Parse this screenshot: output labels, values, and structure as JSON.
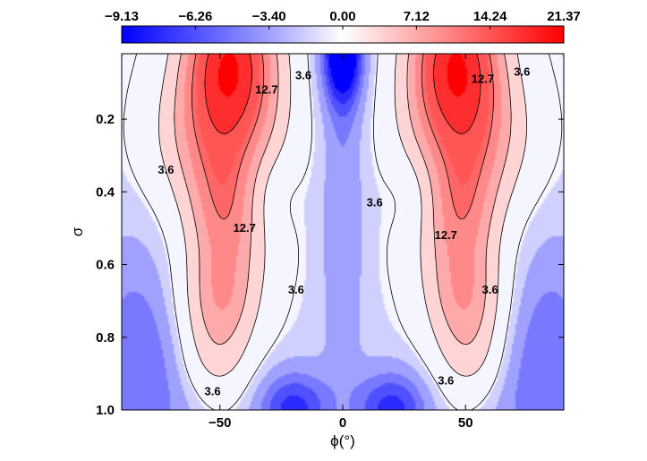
{
  "chart_data": {
    "type": "heatmap",
    "title": "",
    "xlabel": "ϕ(°)",
    "ylabel": "σ",
    "xlim": [
      -90,
      90
    ],
    "ylim": [
      0.02,
      1.0
    ],
    "y_inverted": true,
    "x_ticks": [
      -50,
      0,
      50
    ],
    "x_tick_labels": [
      "−50",
      "0",
      "50"
    ],
    "y_ticks": [
      0.2,
      0.4,
      0.6,
      0.8,
      1.0
    ],
    "y_tick_labels": [
      "0.2",
      "0.4",
      "0.6",
      "0.8",
      "1.0"
    ],
    "colorbar": {
      "placement": "top",
      "tick_values": [
        -9.13,
        -6.26,
        -3.4,
        0.0,
        7.12,
        14.24,
        21.37
      ],
      "tick_labels": [
        "−9.13",
        "−6.26",
        "−3.40",
        "0.00",
        "7.12",
        "14.24",
        "21.37"
      ],
      "min_color": "#0000ff",
      "mid_color": "#ffffff",
      "max_color": "#ff0000"
    },
    "contour_levels_labeled": [
      3.6,
      12.7
    ],
    "contour_labels": [
      {
        "text": "3.6",
        "x": -72,
        "y": 0.34
      },
      {
        "text": "3.6",
        "x": -16,
        "y": 0.08
      },
      {
        "text": "12.7",
        "x": -31,
        "y": 0.12
      },
      {
        "text": "12.7",
        "x": -40,
        "y": 0.5
      },
      {
        "text": "3.6",
        "x": -19,
        "y": 0.67
      },
      {
        "text": "3.6",
        "x": -53,
        "y": 0.95
      },
      {
        "text": "3.6",
        "x": 13,
        "y": 0.43
      },
      {
        "text": "12.7",
        "x": 42,
        "y": 0.52
      },
      {
        "text": "12.7",
        "x": 57,
        "y": 0.09
      },
      {
        "text": "3.6",
        "x": 73,
        "y": 0.07
      },
      {
        "text": "3.6",
        "x": 60,
        "y": 0.67
      },
      {
        "text": "3.6",
        "x": 42,
        "y": 0.92
      }
    ],
    "jet_maxima": [
      {
        "x": -46,
        "y": 0.08,
        "value": 21.37
      },
      {
        "x": 46,
        "y": 0.08,
        "value": 21.37
      }
    ],
    "minima": [
      {
        "x": 0,
        "y": 0.02,
        "value": -9.13
      },
      {
        "x": -20,
        "y": 0.98,
        "value": -6.5
      },
      {
        "x": 20,
        "y": 0.98,
        "value": -6.5
      }
    ]
  }
}
